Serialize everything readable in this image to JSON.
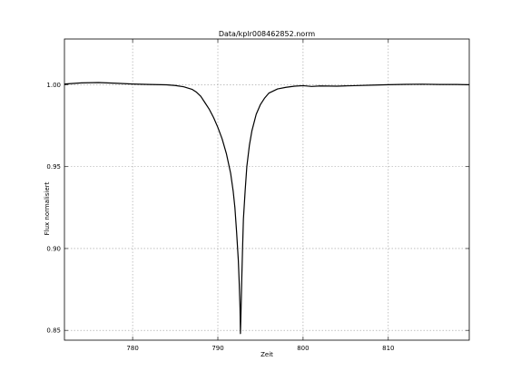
{
  "chart_data": {
    "type": "line",
    "title": "Data/kplr008462852.norm",
    "xlabel": "Zeit",
    "ylabel": "Flux normalisiert",
    "xlim": [
      772,
      819.5
    ],
    "ylim": [
      0.844,
      1.028
    ],
    "xticks": [
      780,
      790,
      800,
      810
    ],
    "yticks": [
      0.85,
      0.9,
      0.95,
      1.0
    ],
    "xtick_labels": [
      "780",
      "790",
      "800",
      "810"
    ],
    "ytick_labels": [
      "0.85",
      "0.90",
      "0.95",
      "1.00"
    ],
    "grid": true,
    "series": [
      {
        "color": "#000000",
        "points": [
          [
            772.0,
            1.0005
          ],
          [
            774.0,
            1.0012
          ],
          [
            776.0,
            1.0014
          ],
          [
            778.0,
            1.001
          ],
          [
            780.0,
            1.0005
          ],
          [
            782.0,
            1.0002
          ],
          [
            784.0,
            1.0
          ],
          [
            785.0,
            0.9996
          ],
          [
            786.0,
            0.9988
          ],
          [
            787.0,
            0.9972
          ],
          [
            787.5,
            0.9955
          ],
          [
            788.0,
            0.993
          ],
          [
            788.5,
            0.989
          ],
          [
            789.0,
            0.985
          ],
          [
            789.5,
            0.98
          ],
          [
            790.0,
            0.974
          ],
          [
            790.5,
            0.967
          ],
          [
            791.0,
            0.958
          ],
          [
            791.5,
            0.946
          ],
          [
            791.8,
            0.935
          ],
          [
            792.0,
            0.925
          ],
          [
            792.2,
            0.91
          ],
          [
            792.4,
            0.893
          ],
          [
            792.5,
            0.88
          ],
          [
            792.6,
            0.864
          ],
          [
            792.65,
            0.848
          ],
          [
            792.72,
            0.862
          ],
          [
            792.8,
            0.88
          ],
          [
            792.9,
            0.9
          ],
          [
            793.0,
            0.918
          ],
          [
            793.2,
            0.935
          ],
          [
            793.4,
            0.95
          ],
          [
            793.7,
            0.963
          ],
          [
            794.0,
            0.972
          ],
          [
            794.5,
            0.982
          ],
          [
            795.0,
            0.988
          ],
          [
            795.5,
            0.992
          ],
          [
            796.0,
            0.995
          ],
          [
            797.0,
            0.9975
          ],
          [
            798.0,
            0.9985
          ],
          [
            799.0,
            0.9992
          ],
          [
            800.0,
            0.9995
          ],
          [
            801.0,
            0.999
          ],
          [
            802.0,
            0.9993
          ],
          [
            804.0,
            0.9992
          ],
          [
            806.0,
            0.9995
          ],
          [
            808.0,
            0.9998
          ],
          [
            810.0,
            1.0001
          ],
          [
            812.0,
            1.0003
          ],
          [
            814.0,
            1.0004
          ],
          [
            816.0,
            1.0002
          ],
          [
            818.0,
            1.0002
          ],
          [
            819.5,
            1.0001
          ]
        ]
      }
    ]
  }
}
